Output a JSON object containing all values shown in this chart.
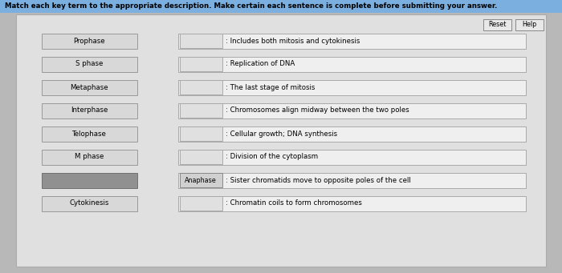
{
  "title": "Match each key term to the appropriate description. Make certain each sentence is complete before submitting your answer.",
  "title_bg": "#7aafe0",
  "title_color": "#000000",
  "title_fontsize": 6.2,
  "panel_bg": "#e0e0e0",
  "outer_bg": "#b8b8b8",
  "left_terms": [
    "Prophase",
    "S phase",
    "Metaphase",
    "Interphase",
    "Telophase",
    "M phase",
    "",
    "Cytokinesis"
  ],
  "left_has_box": [
    true,
    true,
    true,
    true,
    true,
    true,
    true,
    true
  ],
  "left_term_empty": [
    false,
    false,
    false,
    false,
    false,
    false,
    true,
    false
  ],
  "right_descriptions": [
    "Includes both mitosis and cytokinesis",
    "Replication of DNA",
    "The last stage of mitosis",
    "Chromosomes align midway between the two poles",
    "Cellular growth; DNA synthesis",
    "Division of the cytoplasm",
    "Sister chromatids move to opposite poles of the cell",
    "Chromatin coils to form chromosomes"
  ],
  "right_small_filled": [
    false,
    false,
    false,
    false,
    false,
    false,
    true,
    false
  ],
  "right_small_label": [
    "",
    "",
    "",
    "",
    "",
    "",
    "Anaphase",
    ""
  ],
  "button_labels": [
    "Reset",
    "Help"
  ],
  "left_box_color": "#d8d8d8",
  "left_box_border": "#999999",
  "left_empty_color": "#909090",
  "left_empty_border": "#707070",
  "right_box_color": "#efefef",
  "right_box_border": "#aaaaaa",
  "small_box_color": "#e0e0e0",
  "small_box_border": "#aaaaaa",
  "small_filled_color": "#d0d0d0",
  "small_filled_border": "#888888",
  "button_color": "#e8e8e8",
  "button_border": "#888888"
}
